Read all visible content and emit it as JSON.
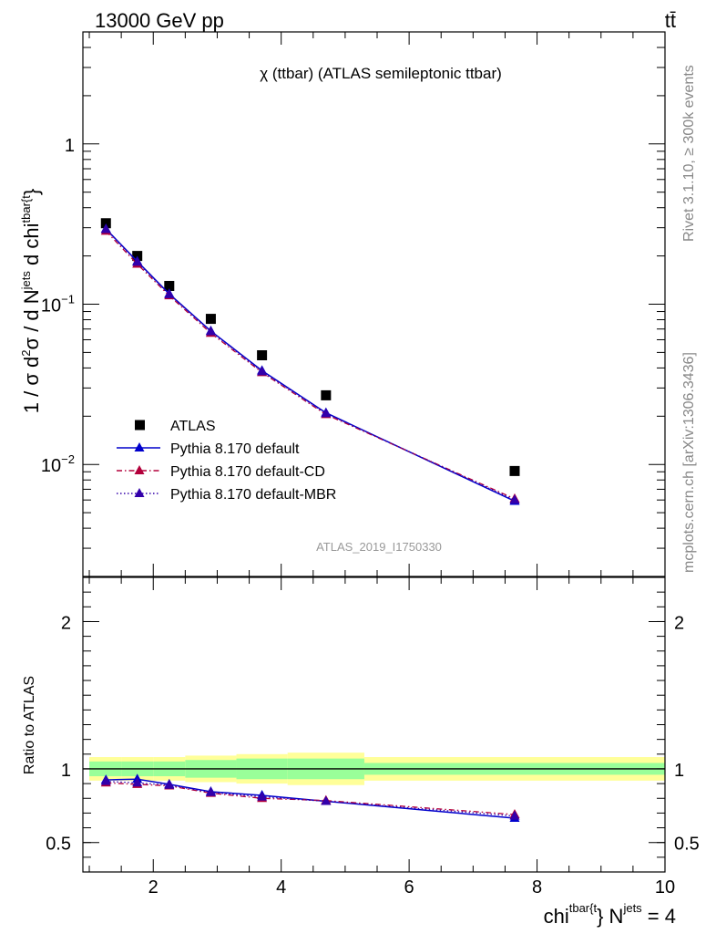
{
  "header": {
    "energy_label": "13000 GeV pp",
    "process_label": "tt̄"
  },
  "side": {
    "rivet_label": "Rivet 3.1.10, ≥ 300k events",
    "site_label": "mcplots.cern.ch [arXiv:1306.3436]"
  },
  "chart_data": [
    {
      "type": "line",
      "title": "χ (ttbar) (ATLAS semileptonic ttbar)",
      "watermark": "ATLAS_2019_I1750330",
      "xlim": [
        0.9,
        10.0
      ],
      "ylim": [
        0.002,
        5.0
      ],
      "y_scale": "log",
      "ylabel": {
        "prefix": "1 / σ d",
        "sup1": "2",
        "mid": "σ / d N",
        "sup2": "jets",
        "mid2": " d chi",
        "sup3": "tbar{t",
        "suffix": "}"
      },
      "y_ticklabels": [
        {
          "v": 1,
          "base": "1",
          "exp": ""
        },
        {
          "v": 0.1,
          "base": "10",
          "exp": "−1"
        },
        {
          "v": 0.01,
          "base": "10",
          "exp": "−2"
        }
      ],
      "legend": {
        "placement": "bottom-left",
        "entries": [
          {
            "label": "ATLAS",
            "marker": "square",
            "color": "#000000",
            "line": "none"
          },
          {
            "label": "Pythia 8.170 default",
            "marker": "triangle",
            "color": "#0000cc",
            "line": "solid"
          },
          {
            "label": "Pythia 8.170 default-CD",
            "marker": "triangle",
            "color": "#b3003b",
            "line": "dashdot"
          },
          {
            "label": "Pythia 8.170 default-MBR",
            "marker": "triangle",
            "color": "#3300aa",
            "line": "dotted"
          }
        ]
      },
      "x": [
        1.26,
        1.75,
        2.25,
        2.9,
        3.7,
        4.7,
        7.65
      ],
      "series": [
        {
          "name": "ATLAS",
          "values": [
            0.32,
            0.2,
            0.13,
            0.081,
            0.048,
            0.027,
            0.0091
          ]
        },
        {
          "name": "Pythia 8.170 default",
          "values": [
            0.295,
            0.185,
            0.116,
            0.068,
            0.0385,
            0.021,
            0.0059
          ]
        },
        {
          "name": "Pythia 8.170 default-CD",
          "values": [
            0.286,
            0.178,
            0.113,
            0.066,
            0.0375,
            0.0205,
            0.0061
          ]
        },
        {
          "name": "Pythia 8.170 default-MBR",
          "values": [
            0.293,
            0.183,
            0.115,
            0.0675,
            0.038,
            0.0208,
            0.006
          ]
        }
      ]
    },
    {
      "type": "line",
      "xlim": [
        0.9,
        10.0
      ],
      "ylim": [
        0.3,
        2.3
      ],
      "ylabel": "Ratio to ATLAS",
      "xlabel": {
        "base": "chi",
        "sup1": "tbar{t",
        "mid": "} N",
        "sup2": "jets",
        "suffix": " = 4"
      },
      "x_ticks": [
        2,
        4,
        6,
        8,
        10
      ],
      "y_ticks": [
        0.5,
        1,
        2
      ],
      "band_edges": [
        1.0,
        1.5,
        2.0,
        2.5,
        3.3,
        4.1,
        5.3,
        10.0
      ],
      "band_inner": [
        0.05,
        0.05,
        0.05,
        0.06,
        0.07,
        0.07,
        0.04
      ],
      "band_outer": [
        0.08,
        0.08,
        0.08,
        0.09,
        0.1,
        0.11,
        0.08
      ],
      "x": [
        1.26,
        1.75,
        2.25,
        2.9,
        3.7,
        4.7,
        7.65
      ],
      "series": [
        {
          "name": "Pythia 8.170 default",
          "values": [
            0.925,
            0.93,
            0.895,
            0.845,
            0.82,
            0.78,
            0.665
          ]
        },
        {
          "name": "Pythia 8.170 default-CD",
          "values": [
            0.905,
            0.895,
            0.885,
            0.835,
            0.8,
            0.785,
            0.69
          ]
        },
        {
          "name": "Pythia 8.170 default-MBR",
          "values": [
            0.915,
            0.905,
            0.89,
            0.84,
            0.81,
            0.78,
            0.68
          ]
        }
      ]
    }
  ]
}
